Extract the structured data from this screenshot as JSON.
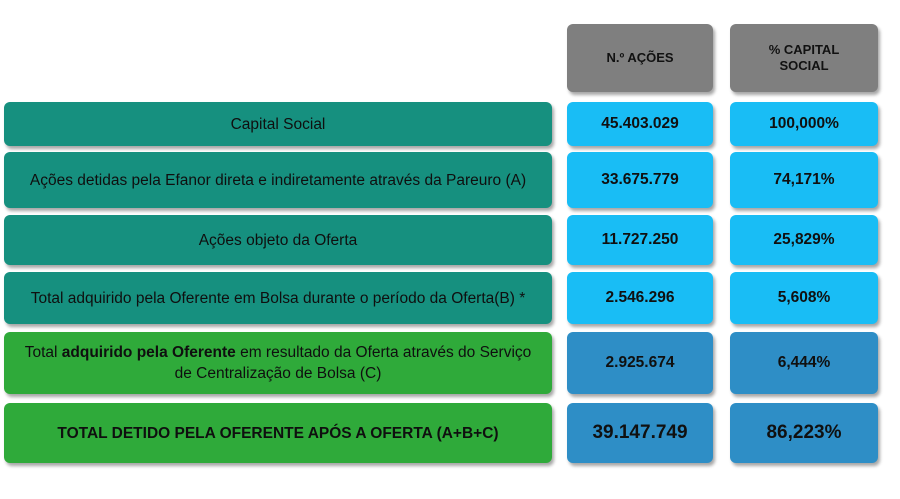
{
  "headers": {
    "shares": "N.º AÇÕES",
    "capital": "% CAPITAL SOCIAL"
  },
  "rows": [
    {
      "label": "Capital Social",
      "shares": "45.403.029",
      "pct": "100,000%"
    },
    {
      "label": "Ações detidas pela Efanor direta e indiretamente  através da Pareuro (A)",
      "shares": "33.675.779",
      "pct": "74,171%"
    },
    {
      "label": "Ações objeto da Oferta",
      "shares": "11.727.250",
      "pct": "25,829%"
    },
    {
      "label": "Total adquirido pela Oferente em Bolsa durante o período da Oferta(B) *",
      "shares": "2.546.296",
      "pct": "5,608%"
    },
    {
      "label_pre": "Total ",
      "label_bold": "adquirido pela Oferente",
      "label_post": " em resultado da Oferta através do Serviço de Centralização de Bolsa (C)",
      "shares": "2.925.674",
      "pct": "6,444%"
    },
    {
      "label": "TOTAL DETIDO PELA OFERENTE APÓS A OFERTA (A+B+C)",
      "shares": "39.147.749",
      "pct": "86,223%"
    }
  ],
  "colors": {
    "teal": "#16907f",
    "green": "#2faa3a",
    "light_blue": "#19bdf5",
    "mid_blue": "#2e8ec6",
    "header_gray": "#7f7f7f"
  }
}
